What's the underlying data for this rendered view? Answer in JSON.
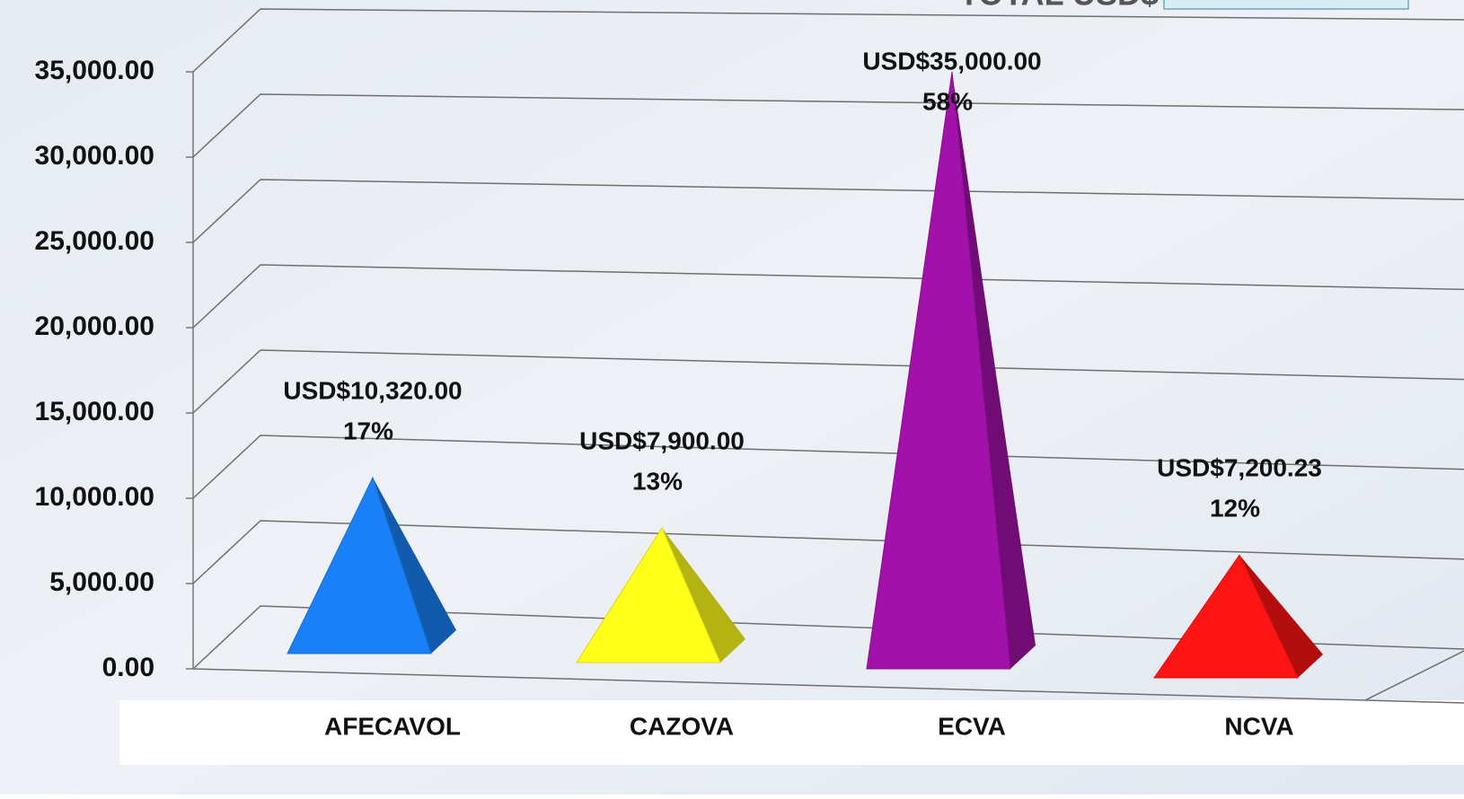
{
  "chart_data": {
    "type": "pyramid",
    "title": "TOTAL USD$",
    "categories": [
      "AFECAVOL",
      "CAZOVA",
      "ECVA",
      "NCVA"
    ],
    "values": [
      10320,
      7900,
      35000,
      7200.23
    ],
    "value_labels": [
      "USD$10,320.00",
      "USD$7,900.00",
      "USD$35,000.00",
      "USD$7,200.23"
    ],
    "percents": [
      17,
      13,
      58,
      12
    ],
    "percent_labels": [
      "17%",
      "13%",
      "58%",
      "12%"
    ],
    "colors": [
      "#1a80f7",
      "#ffff1a",
      "#a211aa",
      "#ff1414"
    ],
    "ylim": [
      0,
      35000
    ],
    "yticks": [
      {
        "value": 0,
        "label": "0.00"
      },
      {
        "value": 5000,
        "label": "5,000.00"
      },
      {
        "value": 10000,
        "label": "10,000.00"
      },
      {
        "value": 15000,
        "label": "15,000.00"
      },
      {
        "value": 20000,
        "label": "20,000.00"
      },
      {
        "value": 25000,
        "label": "25,000.00"
      },
      {
        "value": 30000,
        "label": "30,000.00"
      },
      {
        "value": 35000,
        "label": "35,000.00"
      }
    ],
    "grid": true
  }
}
